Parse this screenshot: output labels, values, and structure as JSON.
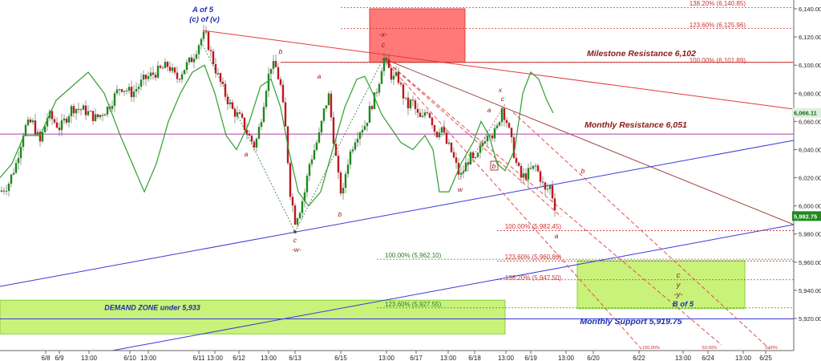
{
  "chart_data": {
    "type": "candlestick",
    "title": "",
    "xlabel": "",
    "ylabel": "",
    "ylim": [
      5895,
      6148
    ],
    "y_ticks": [
      "5,920.00",
      "5,940.00",
      "5,960.00",
      "5,980.00",
      "6,000.00",
      "6,020.00",
      "6,040.00",
      "6,060.00",
      "6,080.00",
      "6,100.00",
      "6,120.00",
      "6,140.00"
    ],
    "x_ticks": [
      "6/8",
      "6/9",
      "13:00",
      "6/10",
      "13:00",
      "6/11",
      "13:00",
      "6/12",
      "13:00",
      "6/13",
      "6/15",
      "13:00",
      "6/17",
      "13:00",
      "6/18",
      "13:00",
      "6/19",
      "13:00",
      "6/20",
      "6/22",
      "13:00",
      "6/24",
      "13:00",
      "6/25"
    ],
    "grid": false,
    "last_price": "5,992.75",
    "indicator_price": "6,066.11",
    "price_path": [
      [
        0,
        6010
      ],
      [
        10,
        6015
      ],
      [
        20,
        6030
      ],
      [
        30,
        6055
      ],
      [
        40,
        6060
      ],
      [
        50,
        6045
      ],
      [
        60,
        6065
      ],
      [
        75,
        6055
      ],
      [
        90,
        6070
      ],
      [
        105,
        6068
      ],
      [
        120,
        6062
      ],
      [
        135,
        6070
      ],
      [
        150,
        6085
      ],
      [
        165,
        6080
      ],
      [
        180,
        6090
      ],
      [
        195,
        6095
      ],
      [
        210,
        6100
      ],
      [
        220,
        6090
      ],
      [
        230,
        6098
      ],
      [
        240,
        6105
      ],
      [
        250,
        6118
      ],
      [
        256,
        6122
      ],
      [
        262,
        6110
      ],
      [
        270,
        6095
      ],
      [
        280,
        6080
      ],
      [
        290,
        6068
      ],
      [
        300,
        6062
      ],
      [
        310,
        6050
      ],
      [
        318,
        6042
      ],
      [
        325,
        6060
      ],
      [
        332,
        6085
      ],
      [
        338,
        6100
      ],
      [
        344,
        6098
      ],
      [
        350,
        6085
      ],
      [
        356,
        6055
      ],
      [
        362,
        6010
      ],
      [
        368,
        5990
      ],
      [
        374,
        5998
      ],
      [
        380,
        6010
      ],
      [
        386,
        6030
      ],
      [
        392,
        6040
      ],
      [
        398,
        6050
      ],
      [
        405,
        6070
      ],
      [
        410,
        6078
      ],
      [
        416,
        6048
      ],
      [
        422,
        6020
      ],
      [
        427,
        6005
      ],
      [
        432,
        6028
      ],
      [
        438,
        6040
      ],
      [
        444,
        6050
      ],
      [
        450,
        6055
      ],
      [
        456,
        6058
      ],
      [
        462,
        6070
      ],
      [
        468,
        6078
      ],
      [
        474,
        6092
      ],
      [
        478,
        6106
      ],
      [
        484,
        6098
      ],
      [
        490,
        6090
      ],
      [
        496,
        6092
      ],
      [
        502,
        6080
      ],
      [
        508,
        6070
      ],
      [
        514,
        6075
      ],
      [
        520,
        6065
      ],
      [
        526,
        6060
      ],
      [
        532,
        6070
      ],
      [
        538,
        6062
      ],
      [
        544,
        6050
      ],
      [
        550,
        6058
      ],
      [
        556,
        6045
      ],
      [
        562,
        6040
      ],
      [
        568,
        6030
      ],
      [
        574,
        6020
      ],
      [
        580,
        6028
      ],
      [
        586,
        6035
      ],
      [
        592,
        6030
      ],
      [
        598,
        6038
      ],
      [
        604,
        6048
      ],
      [
        610,
        6055
      ],
      [
        615,
        6050
      ],
      [
        620,
        6055
      ],
      [
        626,
        6070
      ],
      [
        632,
        6060
      ],
      [
        638,
        6045
      ],
      [
        644,
        6030
      ],
      [
        650,
        6020
      ],
      [
        656,
        6022
      ],
      [
        662,
        6025
      ],
      [
        668,
        6028
      ],
      [
        674,
        6020
      ],
      [
        680,
        6010
      ],
      [
        686,
        6014
      ],
      [
        692,
        6000
      ],
      [
        695,
        5993
      ]
    ],
    "oscillator_path": [
      [
        0,
        6020
      ],
      [
        15,
        6030
      ],
      [
        30,
        6050
      ],
      [
        50,
        6050
      ],
      [
        70,
        6075
      ],
      [
        90,
        6085
      ],
      [
        110,
        6095
      ],
      [
        130,
        6080
      ],
      [
        150,
        6050
      ],
      [
        165,
        6030
      ],
      [
        180,
        6010
      ],
      [
        195,
        6030
      ],
      [
        210,
        6060
      ],
      [
        225,
        6080
      ],
      [
        240,
        6095
      ],
      [
        255,
        6100
      ],
      [
        268,
        6080
      ],
      [
        282,
        6050
      ],
      [
        295,
        6040
      ],
      [
        310,
        6058
      ],
      [
        325,
        6085
      ],
      [
        338,
        6090
      ],
      [
        350,
        6070
      ],
      [
        360,
        6040
      ],
      [
        372,
        6010
      ],
      [
        385,
        6000
      ],
      [
        400,
        6010
      ],
      [
        415,
        6040
      ],
      [
        430,
        6070
      ],
      [
        445,
        6090
      ],
      [
        455,
        6092
      ],
      [
        465,
        6080
      ],
      [
        476,
        6065
      ],
      [
        488,
        6055
      ],
      [
        500,
        6045
      ],
      [
        515,
        6040
      ],
      [
        530,
        6050
      ],
      [
        540,
        6040
      ],
      [
        548,
        6010
      ],
      [
        560,
        6010
      ],
      [
        575,
        6030
      ],
      [
        590,
        6045
      ],
      [
        600,
        6060
      ],
      [
        610,
        6050
      ],
      [
        620,
        6030
      ],
      [
        630,
        6025
      ],
      [
        642,
        6040
      ],
      [
        652,
        6080
      ],
      [
        662,
        6095
      ],
      [
        672,
        6090
      ],
      [
        682,
        6075
      ],
      [
        690,
        6066
      ]
    ],
    "zones": [
      {
        "label": "DEMAND ZONE under 5,933",
        "y_range": [
          5909,
          5933
        ]
      },
      {
        "label": "",
        "y_range": [
          5927,
          5961
        ]
      },
      {
        "label": "",
        "y_range": [
          6102,
          6140
        ]
      }
    ],
    "levels": [
      {
        "label": "Milestone Resistance 6,102",
        "value": 6102
      },
      {
        "label": "Monthly Resistance 6,051",
        "value": 6051
      },
      {
        "label": "Monthly Support 5,919.75",
        "value": 5919.75
      }
    ],
    "fib_labels": [
      {
        "label": "138.20% (6,140.85)",
        "value": 6140.85
      },
      {
        "label": "123.60% (6,125.96)",
        "value": 6125.96
      },
      {
        "label": "100.00% (6,101.89)",
        "value": 6101.89
      },
      {
        "label": "100.00% (5,982.45)",
        "value": 5982.45
      },
      {
        "label": "123.60% (5,960.86)",
        "value": 5960.86
      },
      {
        "label": "138.20% (5,947.50)",
        "value": 5947.5
      },
      {
        "label": "100.00% (5,962.10)",
        "value": 5962.1
      },
      {
        "label": "123.60% (5,927.55)",
        "value": 5927.55
      }
    ],
    "fan_labels": [
      "100.00%",
      "50.00%",
      "0.00%"
    ],
    "wave_labels": [
      "A of 5",
      "(c) of (v)",
      "a",
      "b",
      "a",
      "c",
      "-w-",
      "b",
      "-x-",
      "c",
      "w",
      "b",
      "a",
      "x",
      "c",
      "b",
      "a",
      "c",
      "y",
      "-y-",
      "B of 5"
    ]
  },
  "colors": {
    "bull_candle": "#1a8a1a",
    "bear_candle": "#c0161c",
    "oscillator": "#2f9e2f",
    "resistance": "#e23a3a",
    "support": "#3a3ad8",
    "monthly_resistance": "#b43ab4",
    "zone_green": "#b6ee4e",
    "zone_red": "#ff6a6a",
    "label_dark_red": "#8b1a1a",
    "label_blue": "#1c2fb0",
    "last_price_tag": "#1e8a1e"
  }
}
